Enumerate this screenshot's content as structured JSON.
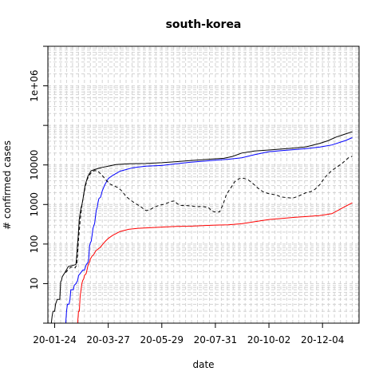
{
  "chart_data": {
    "type": "line",
    "title": "south-korea",
    "xlabel": "date",
    "ylabel": "# confirmed cases",
    "y_scale": "log",
    "x_range": [
      "2020-01-16",
      "2021-01-16"
    ],
    "y_range": [
      1,
      10000000
    ],
    "y_ticks": [
      10,
      100,
      1000,
      10000,
      1000000
    ],
    "y_tick_labels": [
      "10",
      "100",
      "1000",
      "10000",
      "1e+06"
    ],
    "x_ticks": [
      "2020-01-24",
      "2020-03-27",
      "2020-05-29",
      "2020-07-31",
      "2020-10-02",
      "2020-12-04"
    ],
    "x_tick_labels": [
      "20-01-24",
      "20-03-27",
      "20-05-29",
      "20-07-31",
      "20-10-02",
      "20-12-04"
    ],
    "grid": true,
    "legend": "none",
    "series": [
      {
        "color": "#000000",
        "dash": "solid",
        "points": [
          [
            "2020-01-20",
            1
          ],
          [
            "2020-01-21",
            1.5
          ],
          [
            "2020-01-22",
            2
          ],
          [
            "2020-01-24",
            2
          ],
          [
            "2020-01-25",
            3
          ],
          [
            "2020-01-27",
            4
          ],
          [
            "2020-01-30",
            4
          ],
          [
            "2020-01-31",
            11
          ],
          [
            "2020-02-01",
            12
          ],
          [
            "2020-02-02",
            15
          ],
          [
            "2020-02-05",
            19
          ],
          [
            "2020-02-09",
            27
          ],
          [
            "2020-02-17",
            30
          ],
          [
            "2020-02-18",
            31
          ],
          [
            "2020-02-19",
            51
          ],
          [
            "2020-02-20",
            104
          ],
          [
            "2020-02-21",
            204
          ],
          [
            "2020-02-22",
            433
          ],
          [
            "2020-02-23",
            602
          ],
          [
            "2020-02-24",
            833
          ],
          [
            "2020-02-25",
            977
          ],
          [
            "2020-02-26",
            1261
          ],
          [
            "2020-02-27",
            1766
          ],
          [
            "2020-02-28",
            2337
          ],
          [
            "2020-02-29",
            3150
          ],
          [
            "2020-03-01",
            3736
          ],
          [
            "2020-03-02",
            4335
          ],
          [
            "2020-03-03",
            5186
          ],
          [
            "2020-03-04",
            5621
          ],
          [
            "2020-03-05",
            6088
          ],
          [
            "2020-03-07",
            7134
          ],
          [
            "2020-03-10",
            7513
          ],
          [
            "2020-03-15",
            8162
          ],
          [
            "2020-03-20",
            8652
          ],
          [
            "2020-03-27",
            9332
          ],
          [
            "2020-04-05",
            10237
          ],
          [
            "2020-04-20",
            10674
          ],
          [
            "2020-05-10",
            10874
          ],
          [
            "2020-05-29",
            11402
          ],
          [
            "2020-06-15",
            12121
          ],
          [
            "2020-07-01",
            12850
          ],
          [
            "2020-07-31",
            14336
          ],
          [
            "2020-08-10",
            14714
          ],
          [
            "2020-08-20",
            16346
          ],
          [
            "2020-08-31",
            19947
          ],
          [
            "2020-09-15",
            22504
          ],
          [
            "2020-10-02",
            23889
          ],
          [
            "2020-10-20",
            25543
          ],
          [
            "2020-11-01",
            26732
          ],
          [
            "2020-11-15",
            28769
          ],
          [
            "2020-12-01",
            35163
          ],
          [
            "2020-12-10",
            40786
          ],
          [
            "2020-12-20",
            50591
          ],
          [
            "2020-12-31",
            60740
          ],
          [
            "2021-01-08",
            68664
          ]
        ]
      },
      {
        "color": "#0000ff",
        "dash": "solid",
        "points": [
          [
            "2020-02-06",
            1
          ],
          [
            "2020-02-07",
            2
          ],
          [
            "2020-02-08",
            3
          ],
          [
            "2020-02-10",
            3
          ],
          [
            "2020-02-11",
            4
          ],
          [
            "2020-02-12",
            7
          ],
          [
            "2020-02-15",
            7
          ],
          [
            "2020-02-16",
            9
          ],
          [
            "2020-02-18",
            10
          ],
          [
            "2020-02-20",
            12
          ],
          [
            "2020-02-21",
            16
          ],
          [
            "2020-02-23",
            18
          ],
          [
            "2020-02-26",
            22
          ],
          [
            "2020-02-28",
            22
          ],
          [
            "2020-03-01",
            30
          ],
          [
            "2020-03-03",
            34
          ],
          [
            "2020-03-04",
            41
          ],
          [
            "2020-03-05",
            88
          ],
          [
            "2020-03-06",
            108
          ],
          [
            "2020-03-07",
            118
          ],
          [
            "2020-03-08",
            166
          ],
          [
            "2020-03-09",
            247
          ],
          [
            "2020-03-10",
            288
          ],
          [
            "2020-03-11",
            333
          ],
          [
            "2020-03-12",
            510
          ],
          [
            "2020-03-13",
            714
          ],
          [
            "2020-03-14",
            834
          ],
          [
            "2020-03-15",
            1137
          ],
          [
            "2020-03-16",
            1401
          ],
          [
            "2020-03-18",
            1540
          ],
          [
            "2020-03-20",
            2233
          ],
          [
            "2020-03-23",
            3166
          ],
          [
            "2020-03-27",
            4528
          ],
          [
            "2020-04-01",
            5408
          ],
          [
            "2020-04-10",
            6973
          ],
          [
            "2020-04-25",
            8501
          ],
          [
            "2020-05-10",
            9283
          ],
          [
            "2020-05-29",
            9700
          ],
          [
            "2020-06-15",
            10718
          ],
          [
            "2020-07-01",
            11684
          ],
          [
            "2020-07-31",
            13183
          ],
          [
            "2020-08-15",
            13901
          ],
          [
            "2020-08-31",
            15198
          ],
          [
            "2020-09-15",
            18135
          ],
          [
            "2020-10-02",
            21666
          ],
          [
            "2020-10-20",
            23350
          ],
          [
            "2020-11-01",
            24395
          ],
          [
            "2020-11-15",
            25950
          ],
          [
            "2020-12-01",
            28311
          ],
          [
            "2020-12-15",
            32000
          ],
          [
            "2020-12-31",
            41435
          ],
          [
            "2021-01-08",
            49000
          ]
        ]
      },
      {
        "color": "#ff0000",
        "dash": "solid",
        "points": [
          [
            "2020-02-20",
            1
          ],
          [
            "2020-02-21",
            2
          ],
          [
            "2020-02-22",
            2
          ],
          [
            "2020-02-23",
            5
          ],
          [
            "2020-02-24",
            7
          ],
          [
            "2020-02-25",
            10
          ],
          [
            "2020-02-26",
            12
          ],
          [
            "2020-02-27",
            13
          ],
          [
            "2020-02-28",
            16
          ],
          [
            "2020-02-29",
            17
          ],
          [
            "2020-03-01",
            18
          ],
          [
            "2020-03-02",
            22
          ],
          [
            "2020-03-03",
            28
          ],
          [
            "2020-03-04",
            32
          ],
          [
            "2020-03-05",
            35
          ],
          [
            "2020-03-06",
            42
          ],
          [
            "2020-03-08",
            50
          ],
          [
            "2020-03-10",
            54
          ],
          [
            "2020-03-12",
            66
          ],
          [
            "2020-03-15",
            75
          ],
          [
            "2020-03-18",
            84
          ],
          [
            "2020-03-21",
            102
          ],
          [
            "2020-03-24",
            120
          ],
          [
            "2020-03-27",
            139
          ],
          [
            "2020-04-01",
            165
          ],
          [
            "2020-04-10",
            208
          ],
          [
            "2020-04-20",
            236
          ],
          [
            "2020-05-01",
            250
          ],
          [
            "2020-05-29",
            269
          ],
          [
            "2020-06-15",
            278
          ],
          [
            "2020-07-01",
            282
          ],
          [
            "2020-07-31",
            301
          ],
          [
            "2020-08-15",
            305
          ],
          [
            "2020-08-31",
            326
          ],
          [
            "2020-09-15",
            367
          ],
          [
            "2020-10-02",
            418
          ],
          [
            "2020-10-20",
            450
          ],
          [
            "2020-11-01",
            472
          ],
          [
            "2020-11-15",
            496
          ],
          [
            "2020-12-01",
            526
          ],
          [
            "2020-12-15",
            587
          ],
          [
            "2020-12-31",
            900
          ],
          [
            "2021-01-08",
            1100
          ]
        ]
      },
      {
        "color": "#000000",
        "dash": "dashed",
        "points": [
          [
            "2020-02-06",
            19
          ],
          [
            "2020-02-09",
            23
          ],
          [
            "2020-02-12",
            26
          ],
          [
            "2020-02-15",
            26
          ],
          [
            "2020-02-17",
            25
          ],
          [
            "2020-02-19",
            30
          ],
          [
            "2020-02-21",
            130
          ],
          [
            "2020-02-23",
            400
          ],
          [
            "2020-02-25",
            950
          ],
          [
            "2020-02-27",
            1700
          ],
          [
            "2020-02-29",
            2800
          ],
          [
            "2020-03-02",
            4200
          ],
          [
            "2020-03-05",
            5600
          ],
          [
            "2020-03-08",
            6700
          ],
          [
            "2020-03-11",
            7200
          ],
          [
            "2020-03-14",
            7100
          ],
          [
            "2020-03-17",
            6300
          ],
          [
            "2020-03-20",
            5400
          ],
          [
            "2020-03-23",
            4500
          ],
          [
            "2020-03-26",
            3800
          ],
          [
            "2020-03-29",
            3300
          ],
          [
            "2020-04-02",
            3000
          ],
          [
            "2020-04-07",
            2700
          ],
          [
            "2020-04-12",
            2200
          ],
          [
            "2020-04-17",
            1600
          ],
          [
            "2020-04-22",
            1300
          ],
          [
            "2020-04-28",
            1050
          ],
          [
            "2020-05-04",
            900
          ],
          [
            "2020-05-08",
            750
          ],
          [
            "2020-05-11",
            700
          ],
          [
            "2020-05-15",
            740
          ],
          [
            "2020-05-20",
            850
          ],
          [
            "2020-05-26",
            960
          ],
          [
            "2020-06-01",
            1020
          ],
          [
            "2020-06-05",
            1100
          ],
          [
            "2020-06-09",
            1200
          ],
          [
            "2020-06-13",
            1230
          ],
          [
            "2020-06-16",
            1050
          ],
          [
            "2020-06-20",
            950
          ],
          [
            "2020-06-26",
            940
          ],
          [
            "2020-07-03",
            920
          ],
          [
            "2020-07-09",
            880
          ],
          [
            "2020-07-15",
            900
          ],
          [
            "2020-07-20",
            860
          ],
          [
            "2020-07-24",
            800
          ],
          [
            "2020-07-26",
            700
          ],
          [
            "2020-07-30",
            650
          ],
          [
            "2020-08-05",
            650
          ],
          [
            "2020-08-09",
            1000
          ],
          [
            "2020-08-13",
            1800
          ],
          [
            "2020-08-18",
            2600
          ],
          [
            "2020-08-23",
            3800
          ],
          [
            "2020-08-28",
            4500
          ],
          [
            "2020-09-02",
            4600
          ],
          [
            "2020-09-07",
            4300
          ],
          [
            "2020-09-13",
            3400
          ],
          [
            "2020-09-19",
            2600
          ],
          [
            "2020-09-25",
            2100
          ],
          [
            "2020-10-01",
            1900
          ],
          [
            "2020-10-07",
            1800
          ],
          [
            "2020-10-12",
            1700
          ],
          [
            "2020-10-16",
            1550
          ],
          [
            "2020-10-23",
            1500
          ],
          [
            "2020-10-30",
            1450
          ],
          [
            "2020-11-05",
            1600
          ],
          [
            "2020-11-10",
            1800
          ],
          [
            "2020-11-15",
            2000
          ],
          [
            "2020-11-20",
            2100
          ],
          [
            "2020-11-25",
            2400
          ],
          [
            "2020-12-01",
            3200
          ],
          [
            "2020-12-06",
            4600
          ],
          [
            "2020-12-11",
            6000
          ],
          [
            "2020-12-16",
            7500
          ],
          [
            "2020-12-21",
            8900
          ],
          [
            "2020-12-26",
            10500
          ],
          [
            "2020-12-31",
            13000
          ],
          [
            "2021-01-04",
            15500
          ],
          [
            "2021-01-08",
            16500
          ]
        ]
      }
    ]
  }
}
